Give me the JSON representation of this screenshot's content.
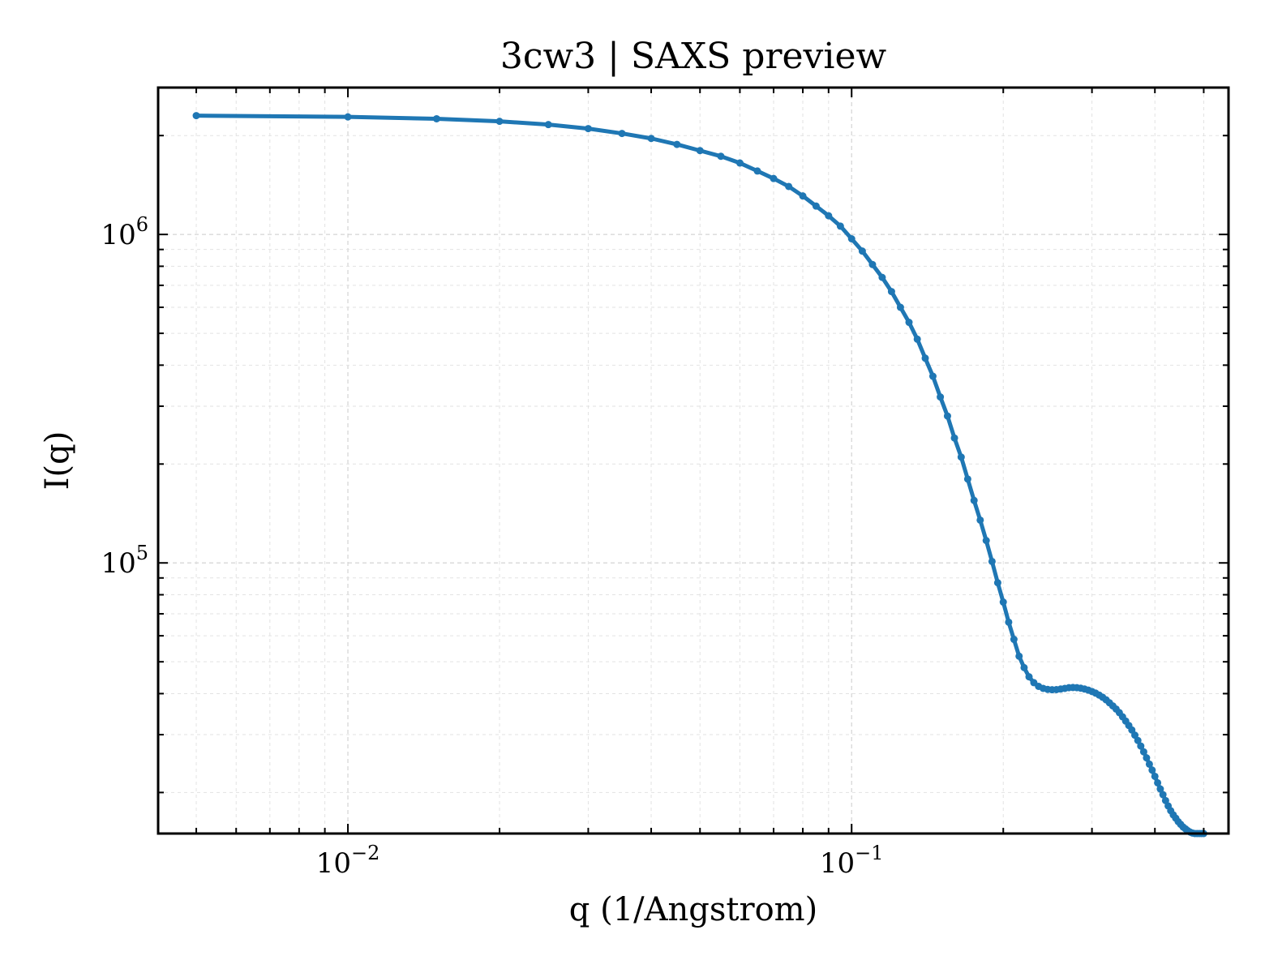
{
  "chart_data": {
    "type": "line",
    "title": "3cw3 | SAXS preview",
    "xlabel": "q (1/Angstrom)",
    "ylabel": "I(q)",
    "xscale": "log",
    "yscale": "log",
    "xlim": [
      0.0042,
      0.56
    ],
    "ylim": [
      15000,
      2800000
    ],
    "grid": true,
    "x_ticks": [
      {
        "value": 0.01,
        "base": "10",
        "exp": "−2"
      },
      {
        "value": 0.1,
        "base": "10",
        "exp": "−1"
      }
    ],
    "y_ticks": [
      {
        "value": 100000,
        "base": "10",
        "exp": "5"
      },
      {
        "value": 1000000,
        "base": "10",
        "exp": "6"
      }
    ],
    "series": [
      {
        "color": "#1f77b4",
        "marker": "point",
        "x": [
          0.005,
          0.01,
          0.015,
          0.02,
          0.025,
          0.03,
          0.035,
          0.04,
          0.045,
          0.05,
          0.055,
          0.06,
          0.065,
          0.07,
          0.075,
          0.08,
          0.085,
          0.09,
          0.095,
          0.1,
          0.105,
          0.11,
          0.115,
          0.12,
          0.125,
          0.13,
          0.135,
          0.14,
          0.145,
          0.15,
          0.155,
          0.16,
          0.165,
          0.17,
          0.175,
          0.18,
          0.185,
          0.19,
          0.195,
          0.2,
          0.205,
          0.21,
          0.215,
          0.22,
          0.225,
          0.23,
          0.235,
          0.24,
          0.245,
          0.25,
          0.255,
          0.26,
          0.265,
          0.27,
          0.275,
          0.28,
          0.285,
          0.29,
          0.295,
          0.3,
          0.305,
          0.31,
          0.315,
          0.32,
          0.325,
          0.33,
          0.335,
          0.34,
          0.345,
          0.35,
          0.355,
          0.36,
          0.365,
          0.37,
          0.375,
          0.38,
          0.385,
          0.39,
          0.395,
          0.4,
          0.405,
          0.41,
          0.415,
          0.42,
          0.425,
          0.43,
          0.435,
          0.44,
          0.445,
          0.45,
          0.455,
          0.46,
          0.465,
          0.47,
          0.475,
          0.48,
          0.485,
          0.49,
          0.495,
          0.5
        ],
        "y": [
          2300000,
          2280000,
          2250000,
          2210000,
          2160000,
          2100000,
          2030000,
          1960000,
          1880000,
          1800000,
          1730000,
          1650000,
          1560000,
          1480000,
          1400000,
          1310000,
          1220000,
          1140000,
          1060000,
          970000,
          890000,
          810000,
          740000,
          670000,
          600000,
          540000,
          480000,
          420000,
          370000,
          320000,
          280000,
          240000,
          210000,
          180000,
          155000,
          135000,
          117000,
          101000,
          87000,
          76000,
          66000,
          58500,
          52000,
          48000,
          45000,
          43200,
          42100,
          41500,
          41200,
          41100,
          41150,
          41300,
          41500,
          41700,
          41750,
          41700,
          41550,
          41300,
          41000,
          40600,
          40150,
          39600,
          39000,
          38300,
          37500,
          36700,
          35900,
          35000,
          34000,
          33000,
          32000,
          31000,
          29900,
          28800,
          27700,
          26600,
          25500,
          24400,
          23400,
          22400,
          21400,
          20500,
          19700,
          18900,
          18200,
          17600,
          17100,
          16700,
          16300,
          16000,
          15700,
          15500,
          15300,
          15150,
          15050,
          15000,
          15000,
          15000,
          15000,
          15000
        ]
      }
    ]
  }
}
